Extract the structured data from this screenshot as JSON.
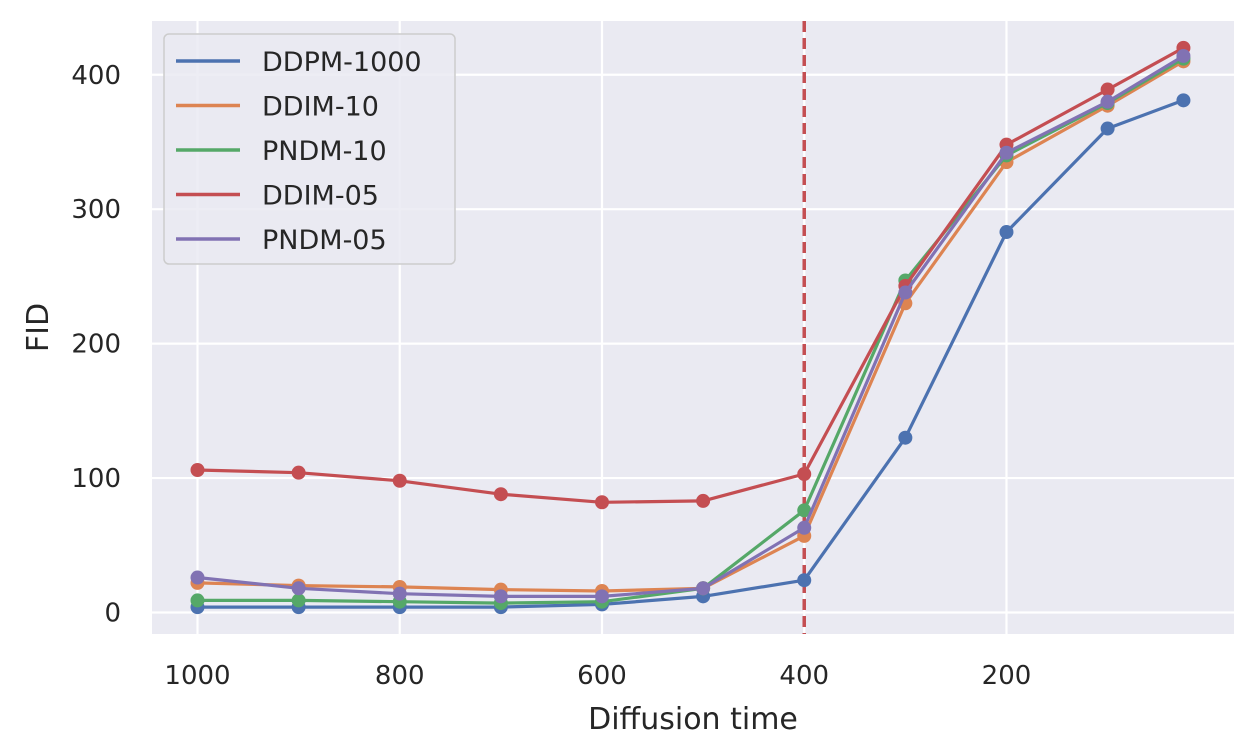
{
  "chart_data": {
    "type": "line",
    "title": "",
    "xlabel": "Diffusion time",
    "ylabel": "FID",
    "x": [
      1000,
      900,
      800,
      700,
      600,
      500,
      400,
      300,
      200,
      100,
      25
    ],
    "xlim": [
      1045,
      -25
    ],
    "ylim": [
      -16,
      440
    ],
    "xticks": [
      1000,
      800,
      600,
      400,
      200
    ],
    "xtick_labels": [
      "1000",
      "800",
      "600",
      "400",
      "200"
    ],
    "yticks": [
      0,
      100,
      200,
      300,
      400
    ],
    "ytick_labels": [
      "0",
      "100",
      "200",
      "300",
      "400"
    ],
    "grid": true,
    "legend_position": "top-left",
    "vline": {
      "x": 400,
      "color": "#c44e52",
      "style": "dashed"
    },
    "series": [
      {
        "name": "DDPM-1000",
        "color": "#4c72b0",
        "values": [
          4,
          4,
          4,
          4,
          6,
          12,
          24,
          130,
          283,
          360,
          381
        ]
      },
      {
        "name": "DDIM-10",
        "color": "#dd8452",
        "values": [
          22,
          20,
          19,
          17,
          16,
          18,
          57,
          230,
          335,
          377,
          410
        ]
      },
      {
        "name": "PNDM-10",
        "color": "#55a868",
        "values": [
          9,
          9,
          8,
          7,
          8,
          18,
          76,
          247,
          340,
          379,
          412
        ]
      },
      {
        "name": "DDIM-05",
        "color": "#c44e52",
        "values": [
          106,
          104,
          98,
          88,
          82,
          83,
          103,
          243,
          348,
          389,
          420
        ]
      },
      {
        "name": "PNDM-05",
        "color": "#8172b3",
        "values": [
          26,
          18,
          14,
          12,
          12,
          18,
          63,
          238,
          342,
          380,
          414
        ]
      }
    ]
  }
}
